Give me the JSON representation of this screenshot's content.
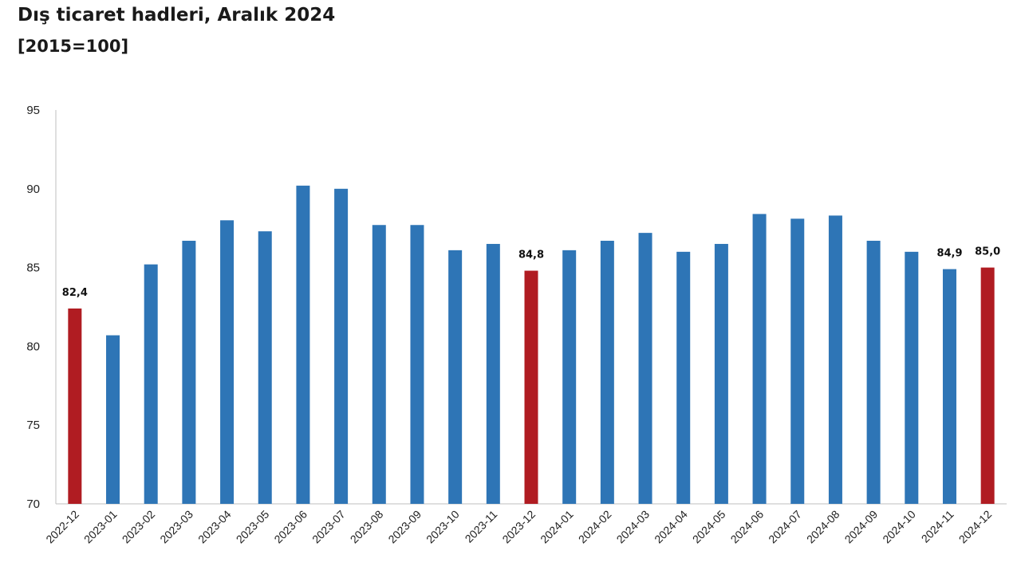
{
  "header": {
    "title": "Dış ticaret hadleri, Aralık 2024",
    "subtitle": "[2015=100]"
  },
  "colors": {
    "regular_bar": "#2e75b6",
    "highlight_bar": "#b01c22",
    "axis": "#bfbfbf"
  },
  "chart_data": {
    "type": "bar",
    "title": "Dış ticaret hadleri, Aralık 2024",
    "subtitle": "[2015=100]",
    "xlabel": "",
    "ylabel": "",
    "ylim": [
      70,
      95
    ],
    "yticks": [
      70,
      75,
      80,
      85,
      90,
      95
    ],
    "grid": false,
    "categories": [
      "2022-12",
      "2023-01",
      "2023-02",
      "2023-03",
      "2023-04",
      "2023-05",
      "2023-06",
      "2023-07",
      "2023-08",
      "2023-09",
      "2023-10",
      "2023-11",
      "2023-12",
      "2024-01",
      "2024-02",
      "2024-03",
      "2024-04",
      "2024-05",
      "2024-06",
      "2024-07",
      "2024-08",
      "2024-09",
      "2024-10",
      "2024-11",
      "2024-12"
    ],
    "values": [
      82.4,
      80.7,
      85.2,
      86.7,
      88.0,
      87.3,
      90.2,
      90.0,
      87.7,
      87.7,
      86.1,
      86.5,
      84.8,
      86.1,
      86.7,
      87.2,
      86.0,
      86.5,
      88.4,
      88.1,
      88.3,
      86.7,
      86.0,
      84.9,
      85.0
    ],
    "highlighted": [
      "2022-12",
      "2023-12",
      "2024-12"
    ],
    "data_labels": [
      {
        "category": "2022-12",
        "text": "82,4"
      },
      {
        "category": "2023-12",
        "text": "84,8"
      },
      {
        "category": "2024-11",
        "text": "84,9"
      },
      {
        "category": "2024-12",
        "text": "85,0"
      }
    ]
  }
}
